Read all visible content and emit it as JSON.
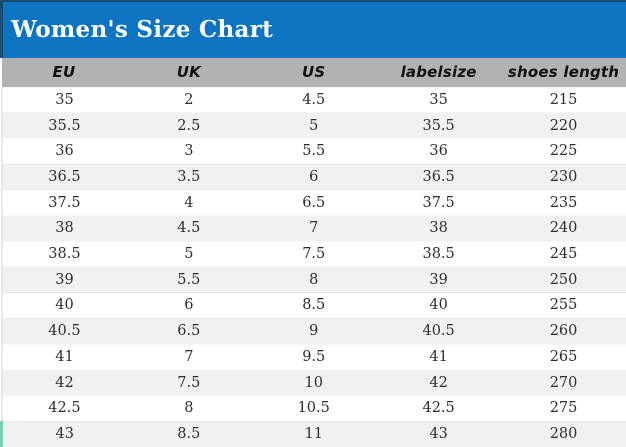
{
  "page": {
    "title": "Women's Size Chart"
  },
  "colors": {
    "title_bar_bg": "#0d74c2",
    "title_text": "#ffffff",
    "border_navy": "#1b4a71",
    "header_bg": "#b2b2b2",
    "row_alt_bg": "#f1f1f1",
    "accent_teal": "#7ccfb4",
    "cell_text": "#2d2d2d"
  },
  "chart_data": {
    "type": "table",
    "title": "Women's Size Chart",
    "columns": [
      "EU",
      "UK",
      "US",
      "labelsize",
      "shoes length"
    ],
    "rows": [
      [
        "35",
        "2",
        "4.5",
        "35",
        "215"
      ],
      [
        "35.5",
        "2.5",
        "5",
        "35.5",
        "220"
      ],
      [
        "36",
        "3",
        "5.5",
        "36",
        "225"
      ],
      [
        "36.5",
        "3.5",
        "6",
        "36.5",
        "230"
      ],
      [
        "37.5",
        "4",
        "6.5",
        "37.5",
        "235"
      ],
      [
        "38",
        "4.5",
        "7",
        "38",
        "240"
      ],
      [
        "38.5",
        "5",
        "7.5",
        "38.5",
        "245"
      ],
      [
        "39",
        "5.5",
        "8",
        "39",
        "250"
      ],
      [
        "40",
        "6",
        "8.5",
        "40",
        "255"
      ],
      [
        "40.5",
        "6.5",
        "9",
        "40.5",
        "260"
      ],
      [
        "41",
        "7",
        "9.5",
        "41",
        "265"
      ],
      [
        "42",
        "7.5",
        "10",
        "42",
        "270"
      ],
      [
        "42.5",
        "8",
        "10.5",
        "42.5",
        "275"
      ],
      [
        "43",
        "8.5",
        "11",
        "43",
        "280"
      ]
    ],
    "layout": {
      "columns_equal_width": true,
      "row_striping": "even-rows-gray",
      "header_font_style": "handwritten-italic"
    }
  }
}
